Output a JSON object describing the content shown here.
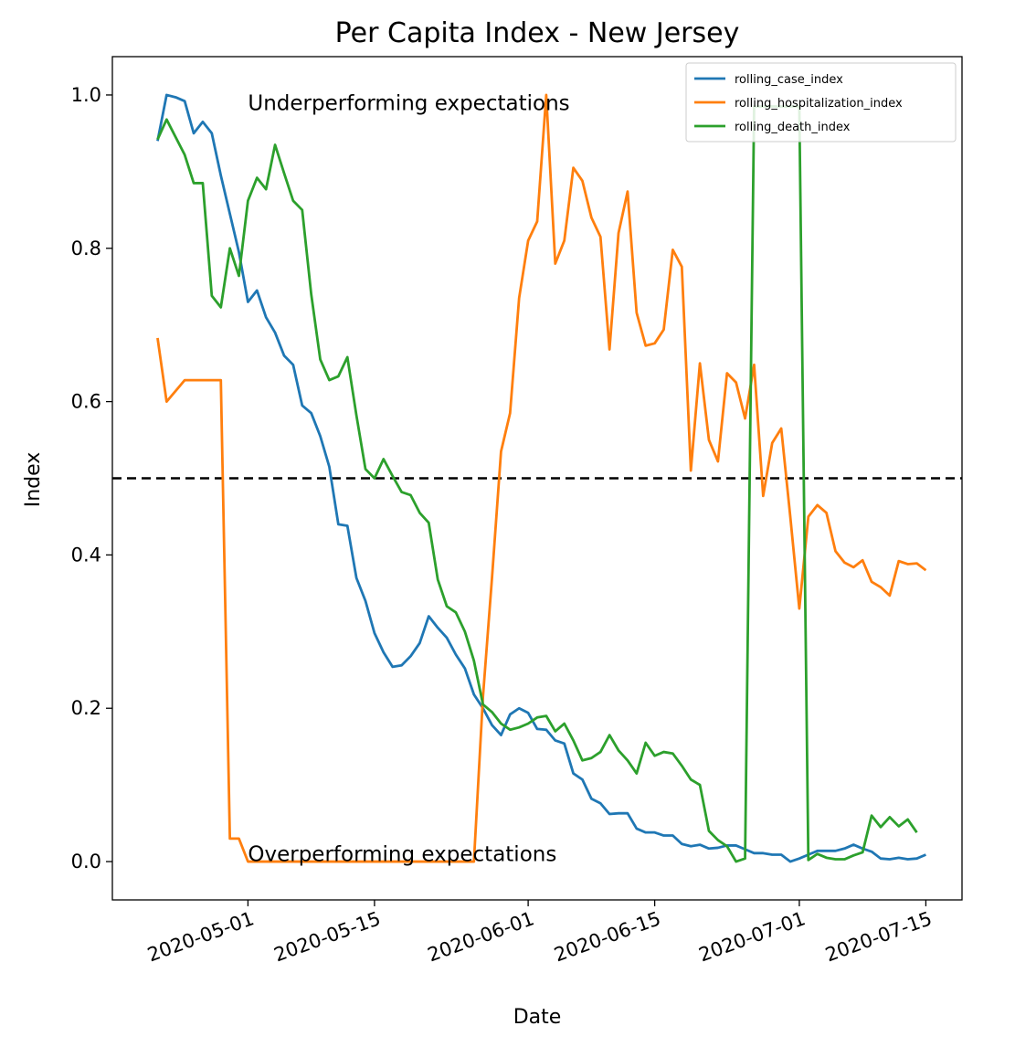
{
  "chart_data": {
    "type": "line",
    "title": "Per Capita Index - New Jersey",
    "xlabel": "Date",
    "ylabel": "Index",
    "x_axis": {
      "kind": "date",
      "range": [
        "2020-04-16",
        "2020-07-19"
      ],
      "ticks": [
        "2020-05-01",
        "2020-05-15",
        "2020-06-01",
        "2020-06-15",
        "2020-07-01",
        "2020-07-15"
      ],
      "tick_rotation": "20 degrees"
    },
    "y_axis": {
      "range": [
        -0.05,
        1.05
      ],
      "ticks": [
        "0.0",
        "0.2",
        "0.4",
        "0.6",
        "0.8",
        "1.0"
      ]
    },
    "reference_line": {
      "y": 0.5,
      "style": "dashed",
      "color": "#000000"
    },
    "annotations": [
      {
        "text": "Underperforming expectations",
        "x": "2020-05-01",
        "y": 0.99
      },
      {
        "text": "Overperforming expectations",
        "x": "2020-05-01",
        "y": 0.01
      }
    ],
    "legend": {
      "placement": "top-right"
    },
    "series": [
      {
        "name": "rolling_case_index",
        "color": "#1f77b4",
        "points": [
          [
            "2020-04-21",
            0.94
          ],
          [
            "2020-04-22",
            1.0
          ],
          [
            "2020-04-23",
            0.997
          ],
          [
            "2020-04-24",
            0.992
          ],
          [
            "2020-04-25",
            0.95
          ],
          [
            "2020-04-26",
            0.965
          ],
          [
            "2020-04-27",
            0.95
          ],
          [
            "2020-04-28",
            0.895
          ],
          [
            "2020-04-29",
            0.845
          ],
          [
            "2020-04-30",
            0.795
          ],
          [
            "2020-05-01",
            0.73
          ],
          [
            "2020-05-02",
            0.745
          ],
          [
            "2020-05-03",
            0.71
          ],
          [
            "2020-05-04",
            0.69
          ],
          [
            "2020-05-05",
            0.66
          ],
          [
            "2020-05-06",
            0.648
          ],
          [
            "2020-05-07",
            0.595
          ],
          [
            "2020-05-08",
            0.585
          ],
          [
            "2020-05-09",
            0.555
          ],
          [
            "2020-05-10",
            0.515
          ],
          [
            "2020-05-11",
            0.44
          ],
          [
            "2020-05-12",
            0.438
          ],
          [
            "2020-05-13",
            0.37
          ],
          [
            "2020-05-14",
            0.34
          ],
          [
            "2020-05-15",
            0.298
          ],
          [
            "2020-05-16",
            0.273
          ],
          [
            "2020-05-17",
            0.254
          ],
          [
            "2020-05-18",
            0.256
          ],
          [
            "2020-05-19",
            0.268
          ],
          [
            "2020-05-20",
            0.285
          ],
          [
            "2020-05-21",
            0.32
          ],
          [
            "2020-05-22",
            0.305
          ],
          [
            "2020-05-23",
            0.292
          ],
          [
            "2020-05-24",
            0.27
          ],
          [
            "2020-05-25",
            0.252
          ],
          [
            "2020-05-26",
            0.218
          ],
          [
            "2020-05-27",
            0.2
          ],
          [
            "2020-05-28",
            0.178
          ],
          [
            "2020-05-29",
            0.165
          ],
          [
            "2020-05-30",
            0.192
          ],
          [
            "2020-05-31",
            0.2
          ],
          [
            "2020-06-01",
            0.194
          ],
          [
            "2020-06-02",
            0.173
          ],
          [
            "2020-06-03",
            0.172
          ],
          [
            "2020-06-04",
            0.158
          ],
          [
            "2020-06-05",
            0.154
          ],
          [
            "2020-06-06",
            0.115
          ],
          [
            "2020-06-07",
            0.107
          ],
          [
            "2020-06-08",
            0.082
          ],
          [
            "2020-06-09",
            0.076
          ],
          [
            "2020-06-10",
            0.062
          ],
          [
            "2020-06-11",
            0.063
          ],
          [
            "2020-06-12",
            0.063
          ],
          [
            "2020-06-13",
            0.043
          ],
          [
            "2020-06-14",
            0.038
          ],
          [
            "2020-06-15",
            0.038
          ],
          [
            "2020-06-16",
            0.034
          ],
          [
            "2020-06-17",
            0.034
          ],
          [
            "2020-06-18",
            0.023
          ],
          [
            "2020-06-19",
            0.02
          ],
          [
            "2020-06-20",
            0.022
          ],
          [
            "2020-06-21",
            0.017
          ],
          [
            "2020-06-22",
            0.018
          ],
          [
            "2020-06-23",
            0.021
          ],
          [
            "2020-06-24",
            0.021
          ],
          [
            "2020-06-25",
            0.016
          ],
          [
            "2020-06-26",
            0.011
          ],
          [
            "2020-06-27",
            0.011
          ],
          [
            "2020-06-28",
            0.009
          ],
          [
            "2020-06-29",
            0.009
          ],
          [
            "2020-06-30",
            0.0
          ],
          [
            "2020-07-01",
            0.004
          ],
          [
            "2020-07-02",
            0.009
          ],
          [
            "2020-07-03",
            0.014
          ],
          [
            "2020-07-04",
            0.014
          ],
          [
            "2020-07-05",
            0.014
          ],
          [
            "2020-07-06",
            0.017
          ],
          [
            "2020-07-07",
            0.022
          ],
          [
            "2020-07-08",
            0.017
          ],
          [
            "2020-07-09",
            0.013
          ],
          [
            "2020-07-10",
            0.004
          ],
          [
            "2020-07-11",
            0.003
          ],
          [
            "2020-07-12",
            0.005
          ],
          [
            "2020-07-13",
            0.003
          ],
          [
            "2020-07-14",
            0.004
          ],
          [
            "2020-07-15",
            0.009
          ]
        ]
      },
      {
        "name": "rolling_hospitalization_index",
        "color": "#ff7f0e",
        "points": [
          [
            "2020-04-21",
            0.683
          ],
          [
            "2020-04-22",
            0.6
          ],
          [
            "2020-04-23",
            0.614
          ],
          [
            "2020-04-24",
            0.628
          ],
          [
            "2020-04-25",
            0.628
          ],
          [
            "2020-04-26",
            0.628
          ],
          [
            "2020-04-27",
            0.628
          ],
          [
            "2020-04-28",
            0.628
          ],
          [
            "2020-04-29",
            0.03
          ],
          [
            "2020-04-30",
            0.03
          ],
          [
            "2020-05-01",
            0.0
          ],
          [
            "2020-05-26",
            0.0
          ],
          [
            "2020-05-27",
            0.215
          ],
          [
            "2020-05-28",
            0.37
          ],
          [
            "2020-05-29",
            0.535
          ],
          [
            "2020-05-30",
            0.585
          ],
          [
            "2020-05-31",
            0.735
          ],
          [
            "2020-06-01",
            0.81
          ],
          [
            "2020-06-02",
            0.835
          ],
          [
            "2020-06-03",
            1.0
          ],
          [
            "2020-06-04",
            0.78
          ],
          [
            "2020-06-05",
            0.81
          ],
          [
            "2020-06-06",
            0.905
          ],
          [
            "2020-06-07",
            0.888
          ],
          [
            "2020-06-08",
            0.84
          ],
          [
            "2020-06-09",
            0.815
          ],
          [
            "2020-06-10",
            0.668
          ],
          [
            "2020-06-11",
            0.82
          ],
          [
            "2020-06-12",
            0.874
          ],
          [
            "2020-06-13",
            0.716
          ],
          [
            "2020-06-14",
            0.673
          ],
          [
            "2020-06-15",
            0.676
          ],
          [
            "2020-06-16",
            0.694
          ],
          [
            "2020-06-17",
            0.798
          ],
          [
            "2020-06-18",
            0.776
          ],
          [
            "2020-06-19",
            0.51
          ],
          [
            "2020-06-20",
            0.65
          ],
          [
            "2020-06-21",
            0.55
          ],
          [
            "2020-06-22",
            0.522
          ],
          [
            "2020-06-23",
            0.637
          ],
          [
            "2020-06-24",
            0.625
          ],
          [
            "2020-06-25",
            0.578
          ],
          [
            "2020-06-26",
            0.648
          ],
          [
            "2020-06-27",
            0.477
          ],
          [
            "2020-06-28",
            0.546
          ],
          [
            "2020-06-29",
            0.565
          ],
          [
            "2020-06-30",
            0.45
          ],
          [
            "2020-07-01",
            0.33
          ],
          [
            "2020-07-02",
            0.45
          ],
          [
            "2020-07-03",
            0.465
          ],
          [
            "2020-07-04",
            0.455
          ],
          [
            "2020-07-05",
            0.405
          ],
          [
            "2020-07-06",
            0.39
          ],
          [
            "2020-07-07",
            0.384
          ],
          [
            "2020-07-08",
            0.393
          ],
          [
            "2020-07-09",
            0.365
          ],
          [
            "2020-07-10",
            0.358
          ],
          [
            "2020-07-11",
            0.347
          ],
          [
            "2020-07-12",
            0.392
          ],
          [
            "2020-07-13",
            0.388
          ],
          [
            "2020-07-14",
            0.389
          ],
          [
            "2020-07-15",
            0.38
          ]
        ]
      },
      {
        "name": "rolling_death_index",
        "color": "#2ca02c",
        "points": [
          [
            "2020-04-21",
            0.942
          ],
          [
            "2020-04-22",
            0.968
          ],
          [
            "2020-04-23",
            0.945
          ],
          [
            "2020-04-24",
            0.922
          ],
          [
            "2020-04-25",
            0.885
          ],
          [
            "2020-04-26",
            0.885
          ],
          [
            "2020-04-27",
            0.738
          ],
          [
            "2020-04-28",
            0.723
          ],
          [
            "2020-04-29",
            0.8
          ],
          [
            "2020-04-30",
            0.764
          ],
          [
            "2020-05-01",
            0.862
          ],
          [
            "2020-05-02",
            0.892
          ],
          [
            "2020-05-03",
            0.877
          ],
          [
            "2020-05-04",
            0.935
          ],
          [
            "2020-05-05",
            0.898
          ],
          [
            "2020-05-06",
            0.862
          ],
          [
            "2020-05-07",
            0.85
          ],
          [
            "2020-05-08",
            0.74
          ],
          [
            "2020-05-09",
            0.655
          ],
          [
            "2020-05-10",
            0.628
          ],
          [
            "2020-05-11",
            0.633
          ],
          [
            "2020-05-12",
            0.658
          ],
          [
            "2020-05-13",
            0.582
          ],
          [
            "2020-05-14",
            0.512
          ],
          [
            "2020-05-15",
            0.5
          ],
          [
            "2020-05-16",
            0.525
          ],
          [
            "2020-05-17",
            0.503
          ],
          [
            "2020-05-18",
            0.482
          ],
          [
            "2020-05-19",
            0.478
          ],
          [
            "2020-05-20",
            0.455
          ],
          [
            "2020-05-21",
            0.442
          ],
          [
            "2020-05-22",
            0.368
          ],
          [
            "2020-05-23",
            0.333
          ],
          [
            "2020-05-24",
            0.325
          ],
          [
            "2020-05-25",
            0.3
          ],
          [
            "2020-05-26",
            0.262
          ],
          [
            "2020-05-27",
            0.205
          ],
          [
            "2020-05-28",
            0.195
          ],
          [
            "2020-05-29",
            0.18
          ],
          [
            "2020-05-30",
            0.172
          ],
          [
            "2020-05-31",
            0.175
          ],
          [
            "2020-06-01",
            0.18
          ],
          [
            "2020-06-02",
            0.188
          ],
          [
            "2020-06-03",
            0.19
          ],
          [
            "2020-06-04",
            0.17
          ],
          [
            "2020-06-05",
            0.18
          ],
          [
            "2020-06-06",
            0.158
          ],
          [
            "2020-06-07",
            0.132
          ],
          [
            "2020-06-08",
            0.135
          ],
          [
            "2020-06-09",
            0.143
          ],
          [
            "2020-06-10",
            0.165
          ],
          [
            "2020-06-11",
            0.145
          ],
          [
            "2020-06-12",
            0.132
          ],
          [
            "2020-06-13",
            0.115
          ],
          [
            "2020-06-14",
            0.155
          ],
          [
            "2020-06-15",
            0.138
          ],
          [
            "2020-06-16",
            0.143
          ],
          [
            "2020-06-17",
            0.141
          ],
          [
            "2020-06-18",
            0.125
          ],
          [
            "2020-06-19",
            0.107
          ],
          [
            "2020-06-20",
            0.1
          ],
          [
            "2020-06-21",
            0.04
          ],
          [
            "2020-06-22",
            0.028
          ],
          [
            "2020-06-23",
            0.02
          ],
          [
            "2020-06-24",
            0.0
          ],
          [
            "2020-06-25",
            0.004
          ],
          [
            "2020-06-26",
            0.985
          ],
          [
            "2020-06-27",
            0.985
          ],
          [
            "2020-06-28",
            0.985
          ],
          [
            "2020-06-29",
            0.985
          ],
          [
            "2020-06-30",
            0.985
          ],
          [
            "2020-07-01",
            0.985
          ],
          [
            "2020-07-02",
            0.002
          ],
          [
            "2020-07-03",
            0.01
          ],
          [
            "2020-07-04",
            0.005
          ],
          [
            "2020-07-05",
            0.003
          ],
          [
            "2020-07-06",
            0.003
          ],
          [
            "2020-07-07",
            0.008
          ],
          [
            "2020-07-08",
            0.012
          ],
          [
            "2020-07-09",
            0.06
          ],
          [
            "2020-07-10",
            0.045
          ],
          [
            "2020-07-11",
            0.058
          ],
          [
            "2020-07-12",
            0.046
          ],
          [
            "2020-07-13",
            0.055
          ],
          [
            "2020-07-14",
            0.038
          ]
        ]
      }
    ]
  }
}
